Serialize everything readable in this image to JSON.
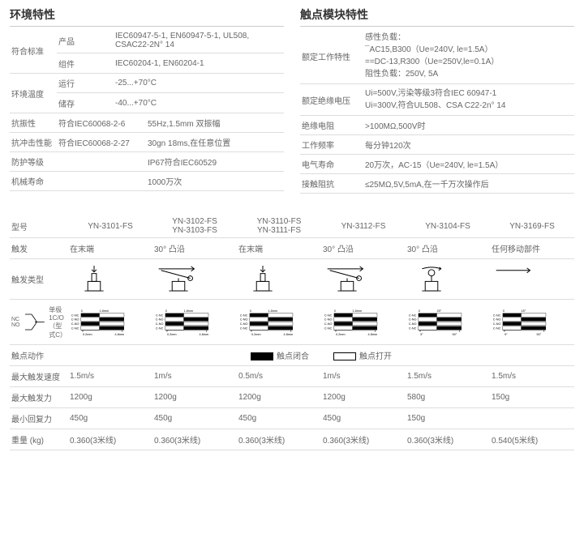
{
  "env": {
    "title": "环境特性",
    "rows": [
      {
        "label": "符合标准",
        "subs": [
          {
            "sub": "产品",
            "val": "IEC60947-5-1, EN60947-5-1, UL508, CSAC22-2N° 14"
          },
          {
            "sub": "组件",
            "val": "IEC60204-1, EN60204-1"
          }
        ]
      },
      {
        "label": "环境温度",
        "subs": [
          {
            "sub": "运行",
            "val": "-25...+70°C"
          },
          {
            "sub": "储存",
            "val": "-40...+70°C"
          }
        ]
      },
      {
        "label": "抗振性",
        "sub": "符合IEC60068-2-6",
        "val": "55Hz,1.5mm 双振幅"
      },
      {
        "label": "抗冲击性能",
        "sub": "符合IEC60068-2-27",
        "val": "30gn 18ms,在任意位置"
      },
      {
        "label": "防护等级",
        "sub": "",
        "val": "IP67符合IEC60529"
      },
      {
        "label": "机械寿命",
        "sub": "",
        "val": "1000万次"
      }
    ]
  },
  "contact": {
    "title": "触点模块特性",
    "rows": [
      {
        "label": "额定工作特性",
        "val": "感性负载：\n¯AC15,B300（Ue=240V, le=1.5A）\n==DC-13,R300（Ue=250V,le=0.1A）\n阻性负载：250V, 5A"
      },
      {
        "label": "额定绝缘电压",
        "val": "Ui=500V,污染等级3符合IEC 60947-1\nUi=300V,符合UL508、CSA C22-2n° 14"
      },
      {
        "label": "绝缘电阻",
        "val": ">100MΩ,500V时"
      },
      {
        "label": "工作频率",
        "val": "每分钟120次"
      },
      {
        "label": "电气寿命",
        "val": "20万次，AC-15（Ue=240V, le=1.5A）"
      },
      {
        "label": "接触阻抗",
        "val": "≤25MΩ,5V,5mA,在一千万次操作后"
      }
    ]
  },
  "models": {
    "headers": [
      "YN-3101-FS",
      "YN-3102-FS\nYN-3103-FS",
      "YN-3110-FS\nYN-3111-FS",
      "YN-3112-FS",
      "YN-3104-FS",
      "YN-3169-FS"
    ],
    "rows": {
      "model": "型号",
      "trigger": {
        "label": "触发",
        "vals": [
          "在末端",
          "30° 凸沿",
          "在末端",
          "30° 凸沿",
          "30° 凸沿",
          "任何移动部件"
        ]
      },
      "ttype": "触发类型",
      "ncno": {
        "label": "单极 1C/O\n（型式C）",
        "left": "NC\nNO"
      },
      "action": {
        "label": "触点动作",
        "close": "触点闭合",
        "open": "触点打开"
      },
      "maxspeed": {
        "label": "最大触发速度",
        "vals": [
          "1.5m/s",
          "1m/s",
          "0.5m/s",
          "1m/s",
          "1.5m/s",
          "1.5m/s"
        ]
      },
      "maxforce": {
        "label": "最大触发力",
        "vals": [
          "1200g",
          "1200g",
          "1200g",
          "1200g",
          "580g",
          "150g"
        ]
      },
      "minforce": {
        "label": "最小回复力",
        "vals": [
          "450g",
          "450g",
          "450g",
          "450g",
          "150g",
          ""
        ]
      },
      "weight": {
        "label": "重量 (kg)",
        "vals": [
          "0.360(3米线)",
          "0.360(3米线)",
          "0.360(3米线)",
          "0.360(3米线)",
          "0.360(3米线)",
          "0.540(5米线)"
        ]
      }
    },
    "trigger_types": [
      {
        "kind": "plunger"
      },
      {
        "kind": "roller-lever"
      },
      {
        "kind": "plunger"
      },
      {
        "kind": "roller-lever"
      },
      {
        "kind": "ball-lever"
      },
      {
        "kind": "spring"
      }
    ],
    "charts": [
      {
        "xmax": "1.8mm",
        "xticks": [
          "0.2mm",
          "4.8mm"
        ],
        "pattern": "linear"
      },
      {
        "xmax": "1.8mm",
        "xticks": [
          "0.2mm",
          "4.8mm"
        ],
        "pattern": "linear"
      },
      {
        "xmax": "1.8mm",
        "xticks": [
          "0.2mm",
          "4.8mm"
        ],
        "pattern": "linear"
      },
      {
        "xmax": "1.8mm",
        "xticks": [
          "0.2mm",
          "4.8mm"
        ],
        "pattern": "linear"
      },
      {
        "xmax": "25°",
        "xticks": [
          "3°",
          "90°"
        ],
        "pattern": "angle"
      },
      {
        "xmax": "15°",
        "xticks": [
          "9°",
          "50°"
        ],
        "pattern": "angle"
      }
    ],
    "chart_labels": [
      "C-NC",
      "C-NO",
      "C-NO",
      "C-NC"
    ],
    "colors": {
      "black": "#000000",
      "white": "#ffffff",
      "border": "#000000",
      "divider": "#dddddd",
      "text": "#666666"
    }
  }
}
